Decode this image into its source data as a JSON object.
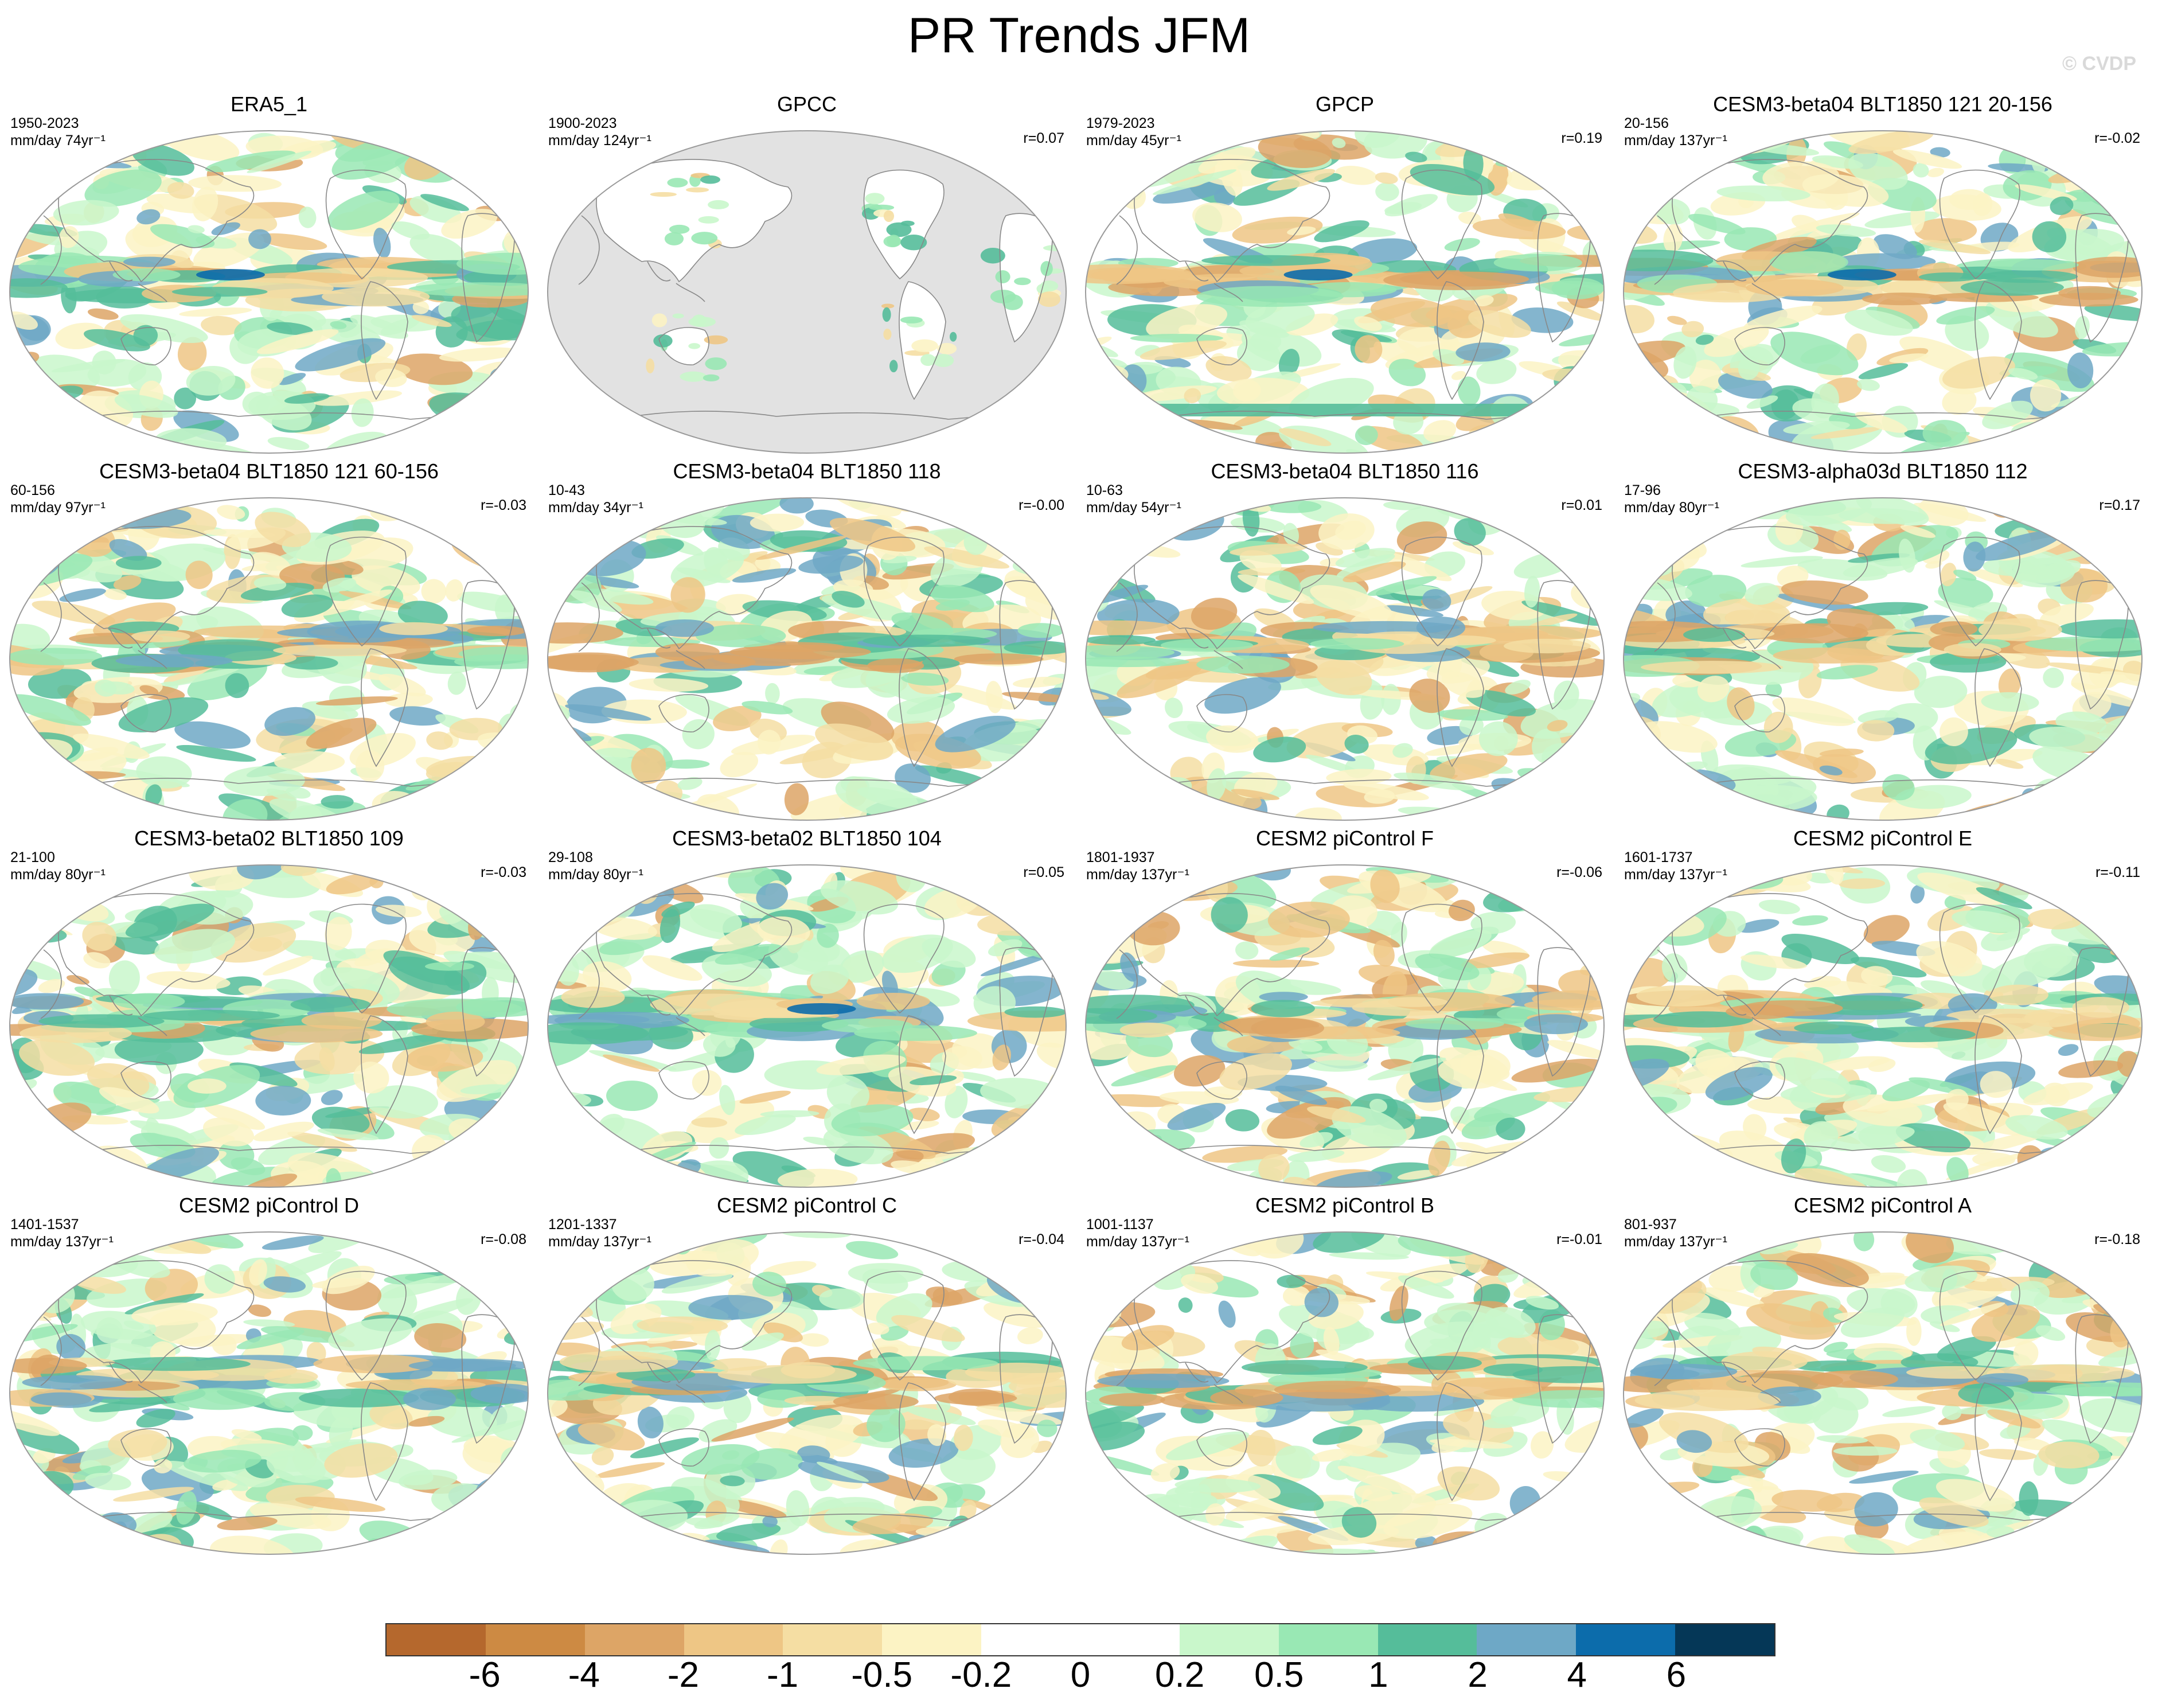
{
  "title": "PR Trends JFM",
  "watermark": "© CVDP",
  "panels": [
    {
      "title": "ERA5_1",
      "years": "1950-2023",
      "units": "mm/day 74yr⁻¹",
      "r": ""
    },
    {
      "title": "GPCC",
      "years": "1900-2023",
      "units": "mm/day 124yr⁻¹",
      "r": "r=0.07"
    },
    {
      "title": "GPCP",
      "years": "1979-2023",
      "units": "mm/day 45yr⁻¹",
      "r": "r=0.19"
    },
    {
      "title": "CESM3-beta04 BLT1850 121 20-156",
      "years": "20-156",
      "units": "mm/day 137yr⁻¹",
      "r": "r=-0.02"
    },
    {
      "title": "CESM3-beta04 BLT1850 121 60-156",
      "years": "60-156",
      "units": "mm/day 97yr⁻¹",
      "r": "r=-0.03"
    },
    {
      "title": "CESM3-beta04 BLT1850 118",
      "years": "10-43",
      "units": "mm/day 34yr⁻¹",
      "r": "r=-0.00"
    },
    {
      "title": "CESM3-beta04 BLT1850 116",
      "years": "10-63",
      "units": "mm/day 54yr⁻¹",
      "r": "r=0.01"
    },
    {
      "title": "CESM3-alpha03d BLT1850 112",
      "years": "17-96",
      "units": "mm/day 80yr⁻¹",
      "r": "r=0.17"
    },
    {
      "title": "CESM3-beta02 BLT1850 109",
      "years": "21-100",
      "units": "mm/day 80yr⁻¹",
      "r": "r=-0.03"
    },
    {
      "title": "CESM3-beta02 BLT1850 104",
      "years": "29-108",
      "units": "mm/day 80yr⁻¹",
      "r": "r=0.05"
    },
    {
      "title": "CESM2 piControl F",
      "years": "1801-1937",
      "units": "mm/day 137yr⁻¹",
      "r": "r=-0.06"
    },
    {
      "title": "CESM2 piControl E",
      "years": "1601-1737",
      "units": "mm/day 137yr⁻¹",
      "r": "r=-0.11"
    },
    {
      "title": "CESM2 piControl D",
      "years": "1401-1537",
      "units": "mm/day 137yr⁻¹",
      "r": "r=-0.08"
    },
    {
      "title": "CESM2 piControl C",
      "years": "1201-1337",
      "units": "mm/day 137yr⁻¹",
      "r": "r=-0.04"
    },
    {
      "title": "CESM2 piControl B",
      "years": "1001-1137",
      "units": "mm/day 137yr⁻¹",
      "r": "r=-0.01"
    },
    {
      "title": "CESM2 piControl A",
      "years": "801-937",
      "units": "mm/day 137yr⁻¹",
      "r": "r=-0.18"
    }
  ],
  "colorbar": {
    "colors": [
      "#b5682d",
      "#cd8a43",
      "#dda566",
      "#eec685",
      "#f5dea3",
      "#fcf3c4",
      "#ffffff",
      "#ffffff",
      "#c9f7cb",
      "#99e8b4",
      "#55bd9a",
      "#6ea8c6",
      "#0c6cab",
      "#053757"
    ],
    "labels": [
      "-6",
      "-4",
      "-2",
      "-1",
      "-0.5",
      "-0.2",
      "0",
      "0.2",
      "0.5",
      "1",
      "2",
      "4",
      "6"
    ]
  },
  "masked_color": "#e2e2e2"
}
